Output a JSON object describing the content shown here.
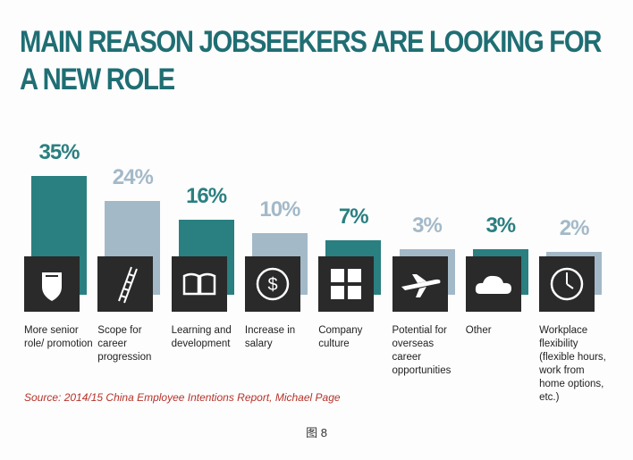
{
  "chart_data": {
    "type": "bar",
    "title": "MAIN REASON JOBSEEKERS ARE LOOKING FOR A NEW ROLE",
    "categories": [
      "More senior role/ promotion",
      "Scope for career progression",
      "Learning and development",
      "Increase in salary",
      "Company culture",
      "Potential for overseas career opportunities",
      "Other",
      "Workplace flexibility (flexible hours, work from home options, etc.)"
    ],
    "values": [
      35,
      24,
      16,
      10,
      7,
      3,
      3,
      2
    ],
    "value_labels": [
      "35%",
      "24%",
      "16%",
      "10%",
      "7%",
      "3%",
      "3%",
      "2%"
    ],
    "colors": [
      "#2a7f80",
      "#a3b9c8",
      "#2a7f80",
      "#a3b9c8",
      "#2a7f80",
      "#a3b9c8",
      "#2a7f80",
      "#a3b9c8"
    ],
    "source": "Source: 2014/15 China Employee Intentions Report, Michael Page",
    "caption": "图 8"
  }
}
